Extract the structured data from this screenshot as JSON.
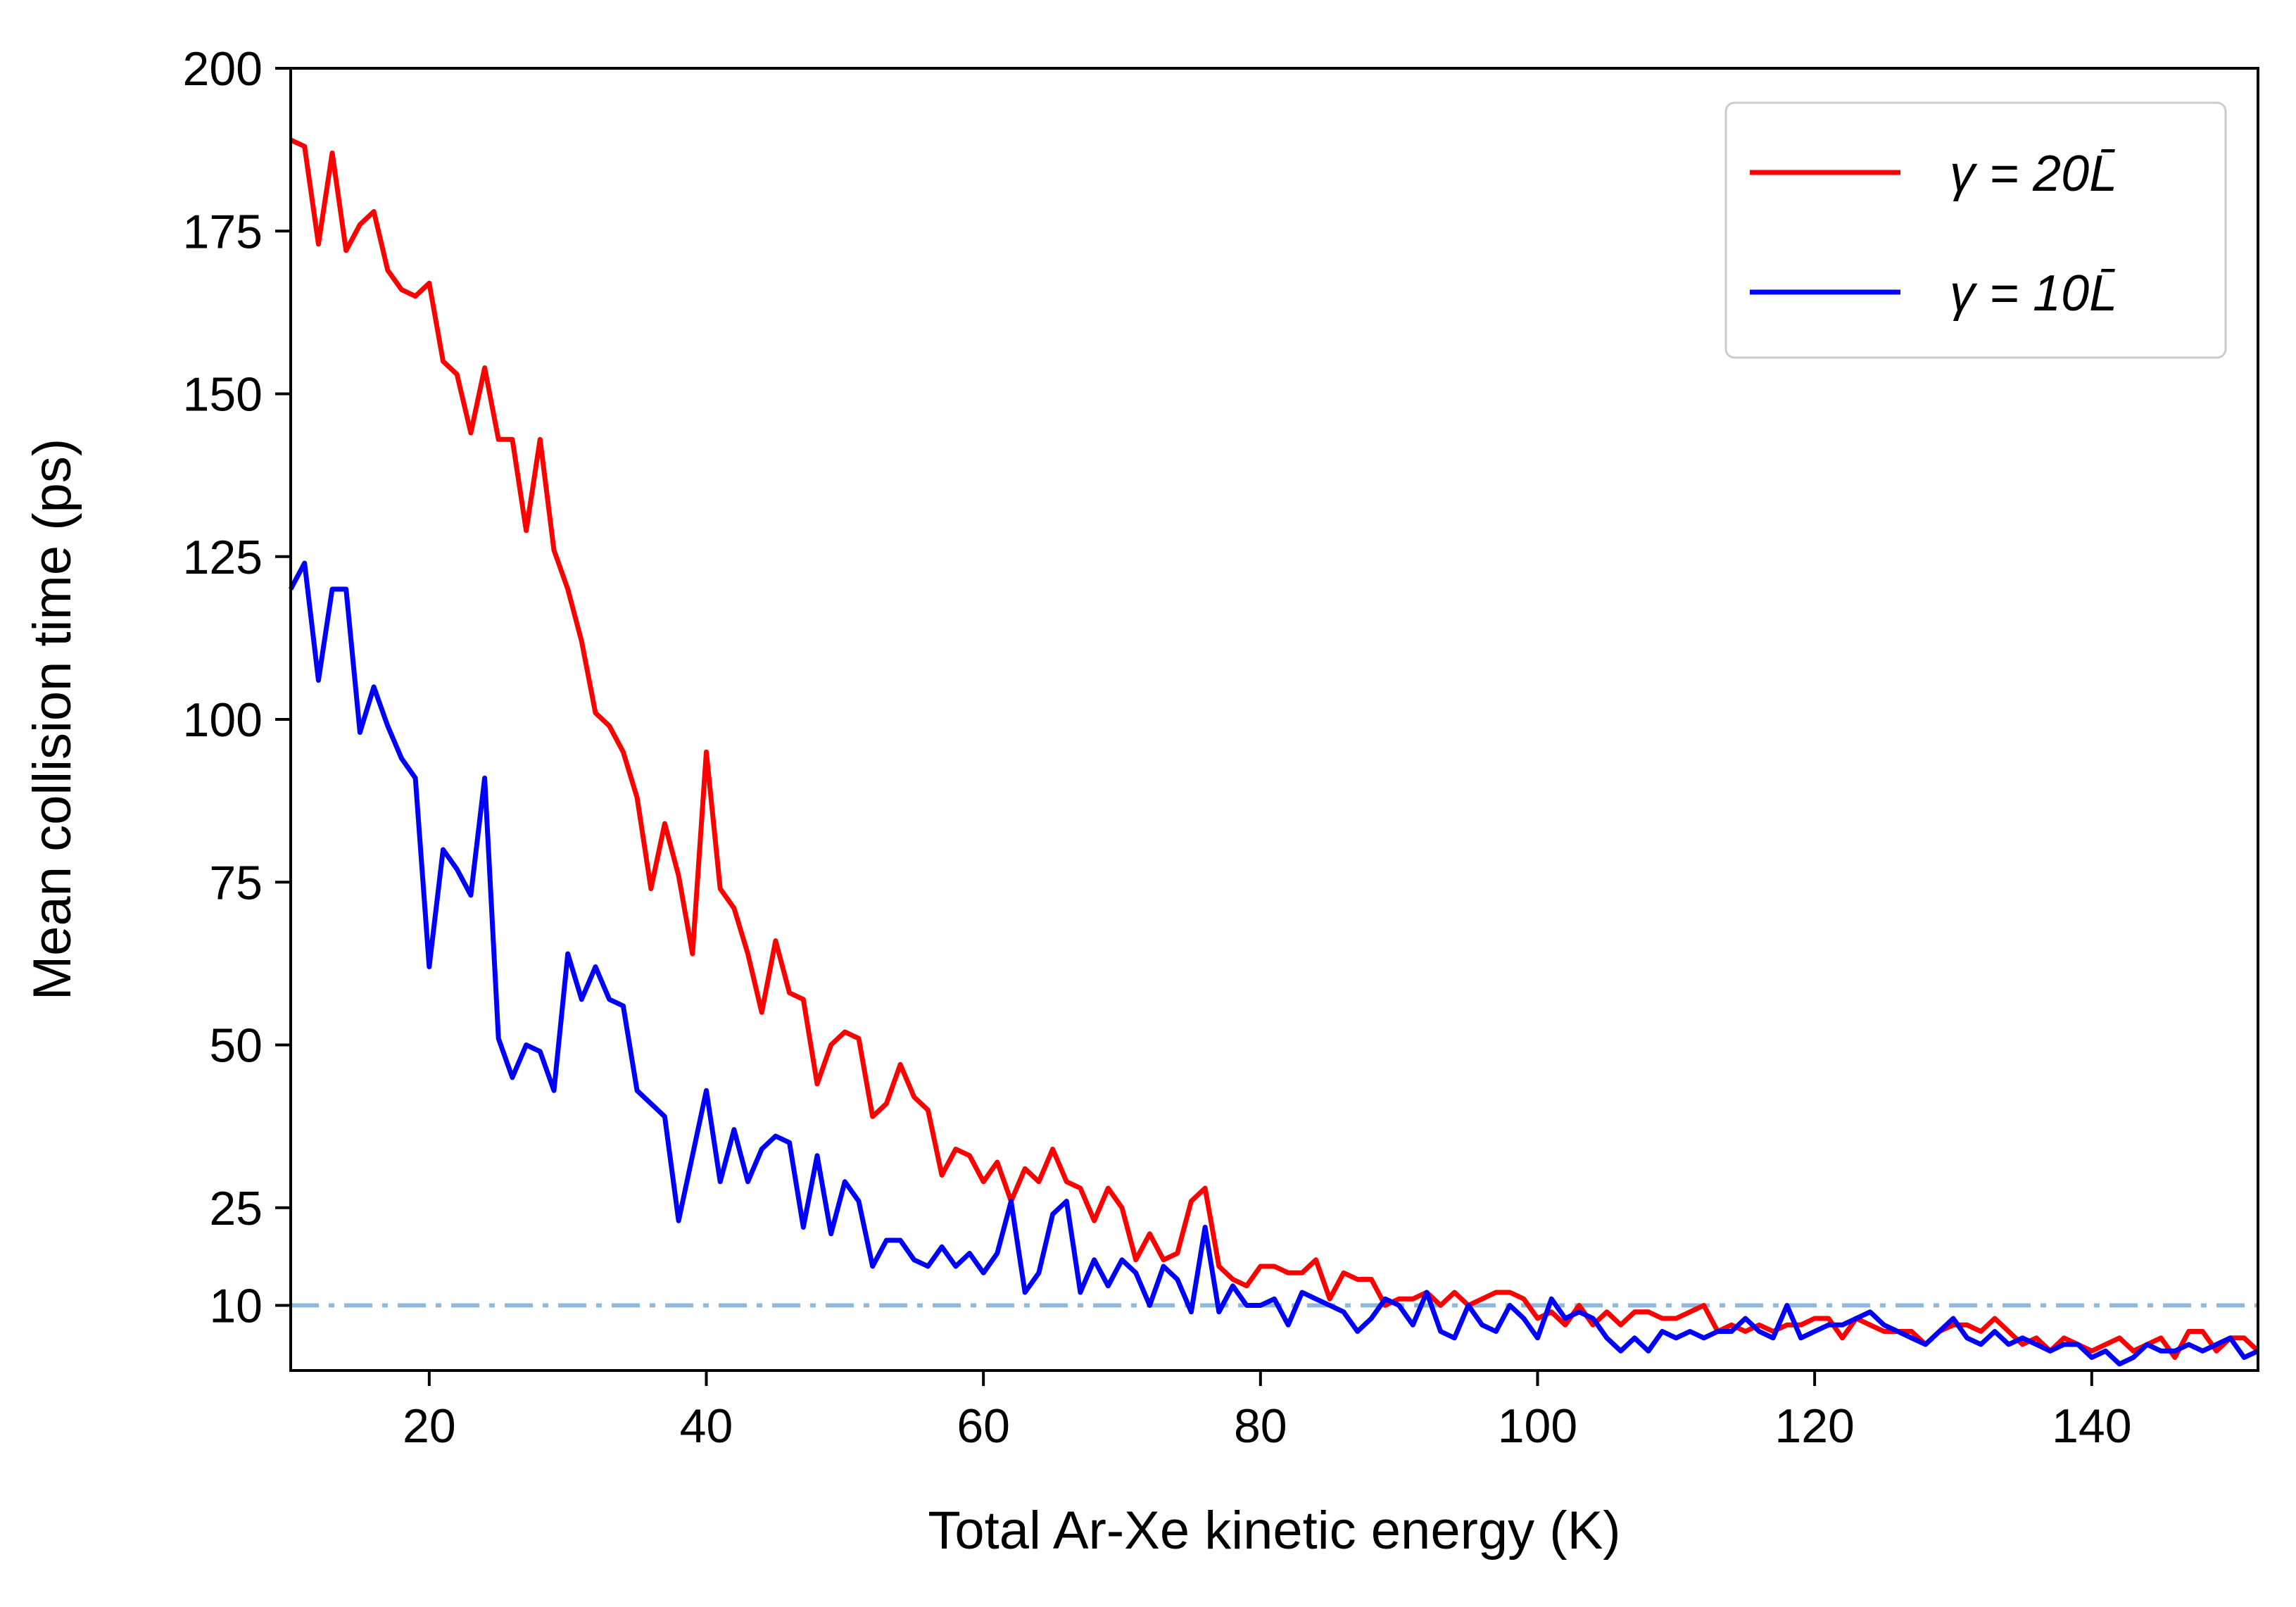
{
  "chart_data": {
    "type": "line",
    "title": "",
    "xlabel": "Total Ar-Xe kinetic energy (K)",
    "ylabel": "Mean collision time (ps)",
    "xlim": [
      10,
      152
    ],
    "ylim": [
      0,
      200
    ],
    "xticks": [
      20,
      40,
      60,
      80,
      100,
      120,
      140
    ],
    "yticks": [
      10,
      25,
      50,
      75,
      100,
      125,
      150,
      175,
      200
    ],
    "grid": false,
    "legend_position": "top-right",
    "reference_line": {
      "y": 10,
      "style": "dash-dot",
      "color": "#8fb8db"
    },
    "series": [
      {
        "name": "γ = 20L̄",
        "color": "#ff0000",
        "x": [
          10,
          11,
          12,
          13,
          14,
          15,
          16,
          17,
          18,
          19,
          20,
          21,
          22,
          23,
          24,
          25,
          26,
          27,
          28,
          29,
          30,
          31,
          32,
          33,
          34,
          35,
          36,
          37,
          38,
          39,
          40,
          41,
          42,
          43,
          44,
          45,
          46,
          47,
          48,
          49,
          50,
          51,
          52,
          53,
          54,
          55,
          56,
          57,
          58,
          59,
          60,
          61,
          62,
          63,
          64,
          65,
          66,
          67,
          68,
          69,
          70,
          71,
          72,
          73,
          74,
          75,
          76,
          77,
          78,
          79,
          80,
          81,
          82,
          83,
          84,
          85,
          86,
          87,
          88,
          89,
          90,
          91,
          92,
          93,
          94,
          95,
          96,
          97,
          98,
          99,
          100,
          101,
          102,
          103,
          104,
          105,
          106,
          107,
          108,
          109,
          110,
          111,
          112,
          113,
          114,
          115,
          116,
          117,
          118,
          119,
          120,
          121,
          122,
          123,
          124,
          125,
          126,
          127,
          128,
          129,
          130,
          131,
          132,
          133,
          134,
          135,
          136,
          137,
          138,
          139,
          140,
          141,
          142,
          143,
          144,
          145,
          146,
          147,
          148,
          149,
          150,
          151,
          152
        ],
        "y": [
          189,
          188,
          173,
          187,
          172,
          176,
          178,
          169,
          166,
          165,
          167,
          155,
          153,
          144,
          154,
          143,
          143,
          129,
          143,
          126,
          120,
          112,
          101,
          99,
          95,
          88,
          74,
          84,
          76,
          64,
          95,
          74,
          71,
          64,
          55,
          66,
          58,
          57,
          44,
          50,
          52,
          51,
          39,
          41,
          47,
          42,
          40,
          30,
          34,
          33,
          29,
          32,
          26,
          31,
          29,
          34,
          29,
          28,
          23,
          28,
          25,
          17,
          21,
          17,
          18,
          26,
          28,
          16,
          14,
          13,
          16,
          16,
          15,
          15,
          17,
          11,
          15,
          14,
          14,
          10,
          11,
          11,
          12,
          10,
          12,
          10,
          11,
          12,
          12,
          11,
          8,
          9,
          7,
          10,
          7,
          9,
          7,
          9,
          9,
          8,
          8,
          9,
          10,
          6,
          7,
          6,
          7,
          6,
          7,
          7,
          8,
          8,
          5,
          8,
          7,
          6,
          6,
          6,
          4,
          6,
          7,
          7,
          6,
          8,
          6,
          4,
          5,
          3,
          5,
          4,
          3,
          4,
          5,
          3,
          4,
          5,
          2,
          6,
          6,
          3,
          5,
          5,
          3
        ]
      },
      {
        "name": "γ = 10L̄",
        "color": "#0000ff",
        "x": [
          10,
          11,
          12,
          13,
          14,
          15,
          16,
          17,
          18,
          19,
          20,
          21,
          22,
          23,
          24,
          25,
          26,
          27,
          28,
          29,
          30,
          31,
          32,
          33,
          34,
          35,
          36,
          37,
          38,
          39,
          40,
          41,
          42,
          43,
          44,
          45,
          46,
          47,
          48,
          49,
          50,
          51,
          52,
          53,
          54,
          55,
          56,
          57,
          58,
          59,
          60,
          61,
          62,
          63,
          64,
          65,
          66,
          67,
          68,
          69,
          70,
          71,
          72,
          73,
          74,
          75,
          76,
          77,
          78,
          79,
          80,
          81,
          82,
          83,
          84,
          85,
          86,
          87,
          88,
          89,
          90,
          91,
          92,
          93,
          94,
          95,
          96,
          97,
          98,
          99,
          100,
          101,
          102,
          103,
          104,
          105,
          106,
          107,
          108,
          109,
          110,
          111,
          112,
          113,
          114,
          115,
          116,
          117,
          118,
          119,
          120,
          121,
          122,
          123,
          124,
          125,
          126,
          127,
          128,
          129,
          130,
          131,
          132,
          133,
          134,
          135,
          136,
          137,
          138,
          139,
          140,
          141,
          142,
          143,
          144,
          145,
          146,
          147,
          148,
          149,
          150,
          151,
          152
        ],
        "y": [
          120,
          124,
          106,
          120,
          120,
          98,
          105,
          99,
          94,
          91,
          62,
          80,
          77,
          73,
          91,
          51,
          45,
          50,
          49,
          43,
          64,
          57,
          62,
          57,
          56,
          43,
          41,
          39,
          23,
          33,
          43,
          29,
          37,
          29,
          34,
          36,
          35,
          22,
          33,
          21,
          29,
          26,
          16,
          20,
          20,
          17,
          16,
          19,
          16,
          18,
          15,
          18,
          26,
          12,
          15,
          24,
          26,
          12,
          17,
          13,
          17,
          15,
          10,
          16,
          14,
          9,
          22,
          9,
          13,
          10,
          10,
          11,
          7,
          12,
          11,
          10,
          9,
          6,
          8,
          11,
          10,
          7,
          12,
          6,
          5,
          10,
          7,
          6,
          10,
          8,
          5,
          11,
          8,
          9,
          8,
          5,
          3,
          5,
          3,
          6,
          5,
          6,
          5,
          6,
          6,
          8,
          6,
          5,
          10,
          5,
          6,
          7,
          7,
          8,
          9,
          7,
          6,
          5,
          4,
          6,
          8,
          5,
          4,
          6,
          4,
          5,
          4,
          3,
          4,
          4,
          2,
          3,
          1,
          2,
          4,
          3,
          3,
          4,
          3,
          4,
          5,
          2,
          3
        ]
      }
    ]
  }
}
